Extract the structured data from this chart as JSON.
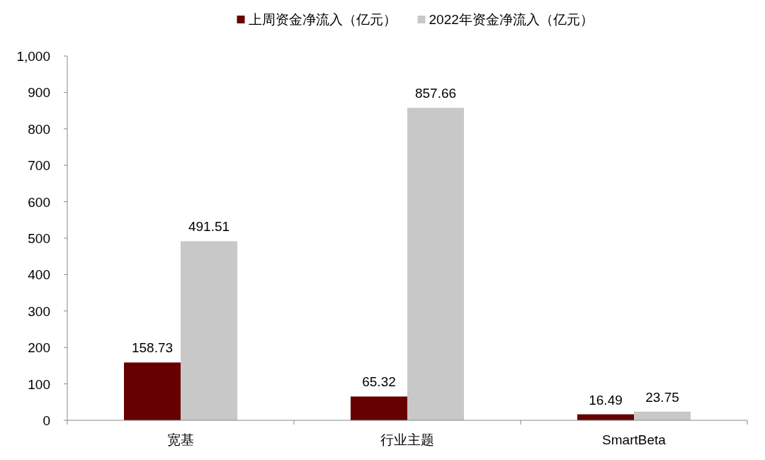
{
  "chart_data": {
    "type": "bar",
    "categories": [
      "宽基",
      "行业主题",
      "SmartBeta"
    ],
    "series": [
      {
        "name": "上周资金净流入（亿元）",
        "color": "#660000",
        "values": [
          158.73,
          65.32,
          16.49
        ]
      },
      {
        "name": "2022年资金净流入（亿元）",
        "color": "#c8c8c8",
        "values": [
          491.51,
          857.66,
          23.75
        ]
      }
    ],
    "ylim": [
      0,
      1000
    ],
    "yticks": [
      0,
      100,
      200,
      300,
      400,
      500,
      600,
      700,
      800,
      900,
      {
        "value": 1000,
        "label": "1,000"
      }
    ],
    "data_labels": true,
    "legend": "top",
    "grid": false
  }
}
